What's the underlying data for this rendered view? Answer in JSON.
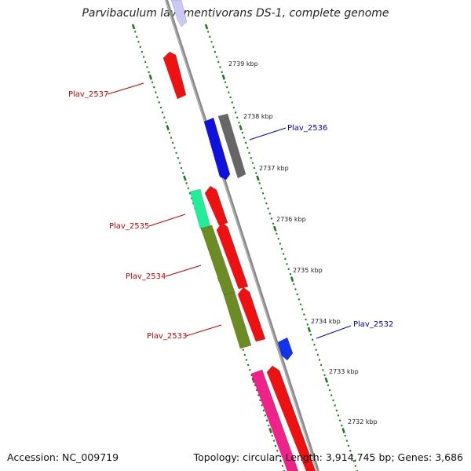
{
  "title": "Parvibaculum lavamentivorans DS-1, complete genome",
  "footer": {
    "accession": "Accession: NC_009719",
    "summary": "Topology: circular; Length: 3,914,745 bp; Genes: 3,686"
  },
  "colors": {
    "backbone": "#8a8a8a",
    "ticks": "#1f7a1f",
    "forward_label": "#0000cc",
    "reverse_label": "#cc0000"
  },
  "scale_labels": [
    "2739 kbp",
    "2738 kbp",
    "2737 kbp",
    "2736 kbp",
    "2735 kbp",
    "2734 kbp",
    "2733 kbp",
    "2732 kbp"
  ],
  "gene_labels": [
    {
      "name": "Plav_2537",
      "strand": "reverse"
    },
    {
      "name": "Plav_2536",
      "strand": "forward"
    },
    {
      "name": "Plav_2535",
      "strand": "reverse"
    },
    {
      "name": "Plav_2534",
      "strand": "reverse"
    },
    {
      "name": "Plav_2533",
      "strand": "reverse"
    },
    {
      "name": "Plav_2532",
      "strand": "forward"
    }
  ],
  "genes": [
    {
      "color": "#c9c9f5"
    },
    {
      "color": "#ee1111"
    },
    {
      "color": "#1111dd"
    },
    {
      "color": "#666666"
    },
    {
      "color": "#22ee99"
    },
    {
      "color": "#ee1111"
    },
    {
      "color": "#6b8c22"
    },
    {
      "color": "#ee1111"
    },
    {
      "color": "#6b8c22"
    },
    {
      "color": "#ee1111"
    },
    {
      "color": "#1133ee"
    },
    {
      "color": "#ee2288"
    },
    {
      "color": "#ee1111"
    }
  ]
}
